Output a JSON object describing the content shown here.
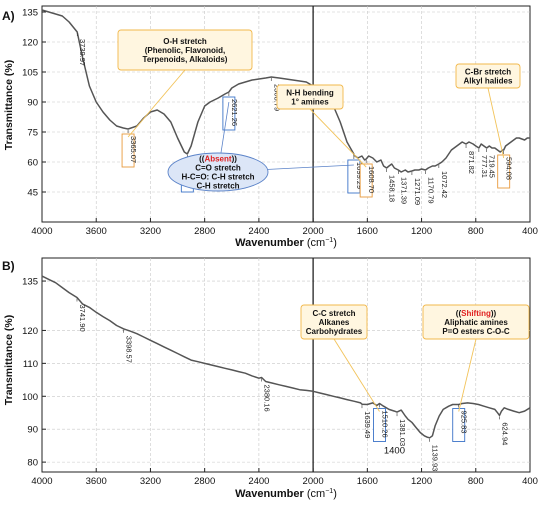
{
  "chart_data": [
    {
      "type": "line",
      "panel_label": "A)",
      "xlabel": "Wavenumber",
      "ylabel": "Transmittance (%)",
      "xlim": [
        4000,
        400
      ],
      "ylim": [
        30,
        138
      ],
      "x_ticks": [
        4000,
        3600,
        3200,
        2800,
        2400,
        2000,
        1600,
        1200,
        800,
        400
      ],
      "y_ticks": [
        45,
        60,
        75,
        90,
        105,
        120,
        135
      ],
      "grid": true,
      "divider_x": 2000,
      "series": [
        {
          "x": [
            4000,
            3950,
            3900,
            3850,
            3800,
            3739.97,
            3700,
            3650,
            3600,
            3550,
            3500,
            3450,
            3400,
            3365.07,
            3300,
            3250,
            3200,
            3150,
            3100,
            3050,
            3000,
            2950,
            2927.94,
            2900,
            2850,
            2800,
            2760,
            2700,
            2650,
            2621.26,
            2600,
            2550,
            2500,
            2450,
            2400,
            2350,
            2308.79,
            2250,
            2200,
            2150,
            2100,
            2050,
            2000,
            1950,
            1900,
            1850,
            1800,
            1750,
            1700,
            1699.29,
            1670,
            1640,
            1620,
            1608.7,
            1590,
            1560,
            1530,
            1500,
            1480,
            1458.18,
            1440,
            1420,
            1400,
            1371.39,
            1350,
            1320,
            1300,
            1271.09,
            1250,
            1220,
            1200,
            1170.79,
            1150,
            1120,
            1100,
            1072.42,
            1050,
            1020,
            1000,
            980,
            960,
            940,
            920,
            900,
            871.82,
            850,
            820,
            800,
            777.31,
            760,
            740,
            719.45,
            700,
            680,
            660,
            640,
            620,
            600,
            594.08,
            580,
            560,
            540,
            520,
            500,
            480,
            460,
            440,
            420,
            400
          ],
          "y": [
            136,
            135,
            134,
            133,
            130,
            125,
            112,
            98,
            90,
            85,
            81,
            78,
            77,
            76.5,
            78,
            82,
            85,
            86,
            84,
            80,
            72,
            65,
            64,
            68,
            80,
            88,
            90,
            92,
            94,
            95,
            97,
            99,
            100,
            101,
            101.5,
            102,
            102.5,
            102,
            101.5,
            101,
            100.5,
            100,
            98,
            96,
            93,
            88,
            80,
            70,
            64,
            63.5,
            62,
            63,
            61,
            61.5,
            63,
            62,
            60,
            61,
            58,
            57,
            58,
            59,
            57,
            56,
            55,
            56,
            55,
            55.5,
            56,
            56,
            56.5,
            56,
            57,
            58,
            58,
            59,
            60,
            62,
            64,
            66,
            67,
            68,
            69,
            70,
            69,
            70,
            69,
            68,
            67,
            69,
            68,
            67,
            68,
            67,
            67,
            66,
            65,
            66,
            66,
            68,
            69,
            70,
            71,
            72,
            72,
            71.5,
            71,
            72,
            72
          ]
        }
      ],
      "peak_labels": [
        {
          "text": "3739.97",
          "x": 3739.97,
          "y": 125
        },
        {
          "text": "3365.07",
          "x": 3365.07,
          "y": 76.5
        },
        {
          "text": "2927.94",
          "x": 2927.94,
          "y": 64
        },
        {
          "text": "2621.26",
          "x": 2621.26,
          "y": 95
        },
        {
          "text": "2308.79",
          "x": 2308.79,
          "y": 102.5
        },
        {
          "text": "1699.29",
          "x": 1699.29,
          "y": 63.5
        },
        {
          "text": "1608.70",
          "x": 1608.7,
          "y": 61.5
        },
        {
          "text": "1458.18",
          "x": 1458.18,
          "y": 57
        },
        {
          "text": "1371.39",
          "x": 1371.39,
          "y": 56
        },
        {
          "text": "1271.09",
          "x": 1271.09,
          "y": 55.5
        },
        {
          "text": "1170.79",
          "x": 1170.79,
          "y": 56
        },
        {
          "text": "1072.42",
          "x": 1072.42,
          "y": 59
        },
        {
          "text": "871.82",
          "x": 871.82,
          "y": 69
        },
        {
          "text": "777.31",
          "x": 777.31,
          "y": 67
        },
        {
          "text": "719.45",
          "x": 719.45,
          "y": 67
        },
        {
          "text": "594.08",
          "x": 594.08,
          "y": 66
        }
      ],
      "annotations": [
        {
          "lines": [
            "O-H stretch",
            "(Phenolic, Flavonoid,",
            "Terpenoids, Alkaloids)"
          ],
          "style": "box",
          "target_x": 3365.07,
          "target_y": 76.5
        },
        {
          "lines": [
            "N-H bending",
            "1° amines"
          ],
          "style": "box",
          "target_x": 1608.7,
          "target_y": 61.5
        },
        {
          "lines": [
            "C-Br stretch",
            "Alkyl halides"
          ],
          "style": "box",
          "target_x": 594.08,
          "target_y": 66
        },
        {
          "lines": [
            "((Absent))",
            "C=O stretch",
            "H-C=O: C-H stretch",
            "C-H stretch"
          ],
          "style": "ellipse",
          "highlight": "Absent",
          "targets": [
            [
              2927.94,
              64
            ],
            [
              2621.26,
              95
            ],
            [
              1699.29,
              63.5
            ]
          ]
        }
      ]
    },
    {
      "type": "line",
      "panel_label": "B)",
      "xlabel": "Wavenumber",
      "ylabel": "Transmittance (%)",
      "xlim": [
        4000,
        400
      ],
      "ylim": [
        77,
        142
      ],
      "x_ticks": [
        4000,
        3600,
        3200,
        2800,
        2400,
        2000,
        1600,
        1200,
        800,
        400
      ],
      "y_ticks": [
        80,
        90,
        100,
        110,
        120,
        135
      ],
      "grid": true,
      "divider_x": 2000,
      "series": [
        {
          "x": [
            4000,
            3950,
            3900,
            3850,
            3800,
            3741.9,
            3700,
            3650,
            3600,
            3550,
            3500,
            3450,
            3398.57,
            3350,
            3300,
            3250,
            3200,
            3150,
            3100,
            3050,
            3000,
            2950,
            2900,
            2850,
            2800,
            2750,
            2700,
            2650,
            2600,
            2550,
            2500,
            2450,
            2400,
            2380.16,
            2350,
            2300,
            2250,
            2200,
            2150,
            2100,
            2050,
            2000,
            1950,
            1900,
            1850,
            1800,
            1750,
            1700,
            1650,
            1639.49,
            1600,
            1560,
            1530,
            1510.26,
            1480,
            1440,
            1400,
            1381.03,
            1350,
            1320,
            1300,
            1270,
            1240,
            1210,
            1180,
            1160,
            1139.93,
            1120,
            1100,
            1070,
            1040,
            1000,
            970,
            950,
            925.83,
            900,
            860,
            820,
            780,
            740,
            700,
            660,
            640,
            624.94,
            610,
            590,
            560,
            520,
            480,
            440,
            400
          ],
          "y": [
            136.5,
            135.5,
            134.5,
            133,
            131.5,
            130,
            128,
            127,
            125.5,
            124.2,
            123,
            121.5,
            120.5,
            119.8,
            119,
            118,
            117,
            116,
            115,
            114,
            113,
            112,
            111,
            110.5,
            110,
            109.5,
            109,
            108.5,
            108,
            107.5,
            107,
            106.2,
            105.5,
            105.7,
            104.5,
            104,
            103.5,
            103,
            102.5,
            102,
            101.8,
            101.5,
            101,
            100.5,
            100,
            99.5,
            99,
            98.5,
            98,
            97.6,
            97.5,
            98,
            97.2,
            97.8,
            97,
            96,
            95.5,
            95.2,
            95.8,
            94,
            93,
            92,
            90.5,
            89,
            88,
            87.6,
            87.4,
            88,
            91,
            94,
            96,
            97,
            97.5,
            97.5,
            97.5,
            97.8,
            98,
            97.8,
            97.5,
            97,
            96.5,
            96,
            95,
            94.2,
            95.5,
            96.5,
            96,
            95.5,
            95,
            95.5,
            96.5
          ]
        }
      ],
      "peak_labels": [
        {
          "text": "3741.90",
          "x": 3741.9,
          "y": 130
        },
        {
          "text": "3398.57",
          "x": 3398.57,
          "y": 120.5
        },
        {
          "text": "2380.16",
          "x": 2380.16,
          "y": 105.7
        },
        {
          "text": "1639.49",
          "x": 1639.49,
          "y": 97.6
        },
        {
          "text": "1510.26",
          "x": 1510.26,
          "y": 97.8
        },
        {
          "text": "1381.03",
          "x": 1381.03,
          "y": 95.2
        },
        {
          "text": "1139.93",
          "x": 1139.93,
          "y": 87.4
        },
        {
          "text": "925.83",
          "x": 925.83,
          "y": 97.8
        },
        {
          "text": "624.94",
          "x": 624.94,
          "y": 94.2
        }
      ],
      "free_labels": [
        {
          "text": "1400",
          "x": 1400,
          "y": 84.5
        }
      ],
      "annotations": [
        {
          "lines": [
            "C-C stretch",
            "Alkanes",
            "Carbohydrates"
          ],
          "style": "box",
          "target_x": 1510.26,
          "target_y": 97.8
        },
        {
          "lines": [
            "((Shifting))",
            "Aliphatic amines",
            "P=O esters C-O-C"
          ],
          "style": "box",
          "highlight": "Shifting",
          "target_x": 925.83,
          "target_y": 97.8
        }
      ]
    }
  ],
  "colors": {
    "spectrum": "#555555",
    "grid": "#c8c8c8",
    "axis": "#222222",
    "annotation_box_fill": "#fff6e0",
    "annotation_box_stroke": "#f2b84b",
    "annotation_leader": "#f2c35a",
    "absent_fill": "#dce6f7",
    "absent_stroke": "#5a82c8",
    "absent_leader": "#5a82c8",
    "highlight_text": "#e02020",
    "peak_box_blue": "#3b73c8",
    "peak_box_orange": "#e89a3c"
  }
}
